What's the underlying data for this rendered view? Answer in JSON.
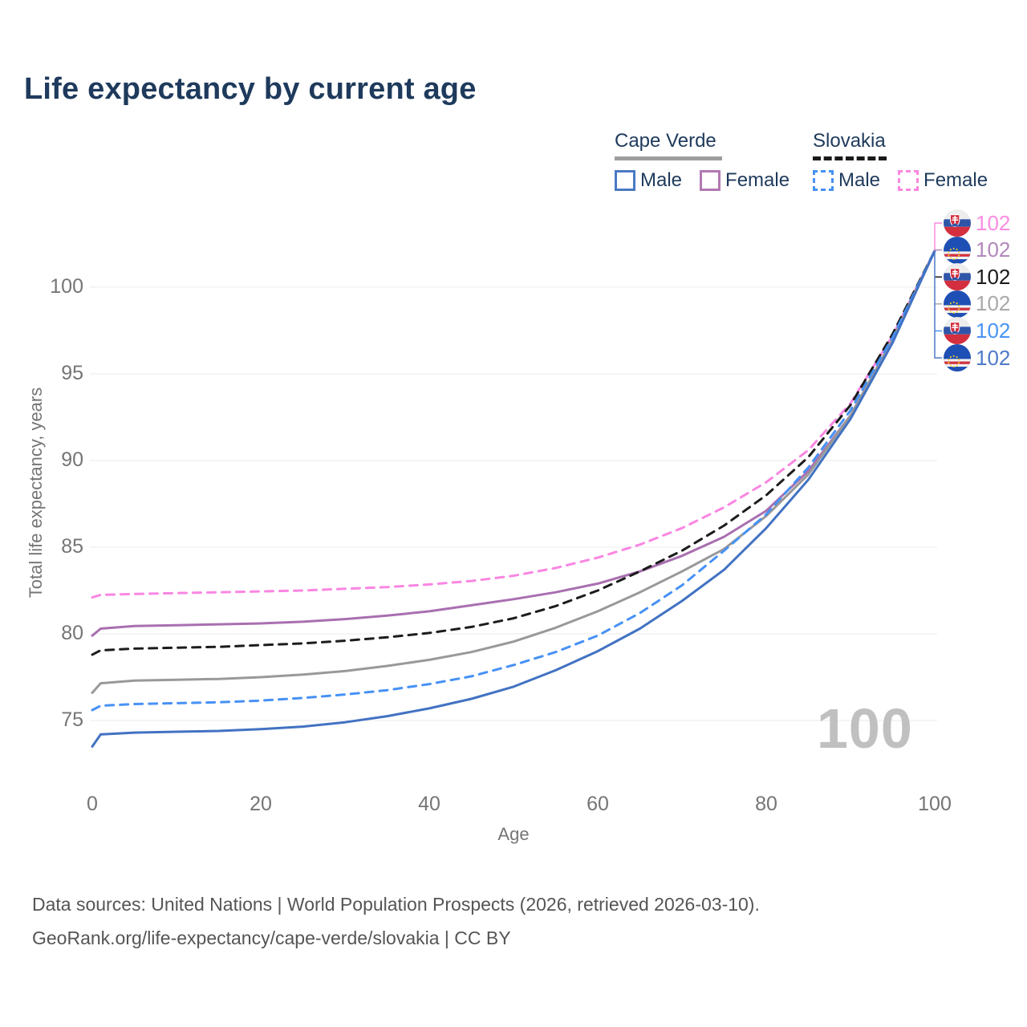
{
  "title": "Life expectancy by current age",
  "legend": {
    "groups": [
      {
        "country": "Cape Verde",
        "line_style": "solid",
        "underline_color": "#9e9e9e",
        "items": [
          {
            "label": "Male",
            "color": "#4a79c5",
            "style": "solid"
          },
          {
            "label": "Female",
            "color": "#b279b2",
            "style": "solid"
          }
        ]
      },
      {
        "country": "Slovakia",
        "line_style": "dashed",
        "underline_color": "#1a1a1a",
        "items": [
          {
            "label": "Male",
            "color": "#4791f5",
            "style": "dashed"
          },
          {
            "label": "Female",
            "color": "#fb87e0",
            "style": "dashed"
          }
        ]
      }
    ]
  },
  "watermark": "100",
  "footer": {
    "line1": "Data sources: United Nations | World Population Prospects (2026, retrieved 2026-03-10).",
    "line2": "GeoRank.org/life-expectancy/cape-verde/slovakia | CC BY"
  },
  "chart_data": {
    "type": "line",
    "title": "Life expectancy by current age",
    "xlabel": "Age",
    "ylabel": "Total life expectancy, years",
    "xticks": [
      0,
      20,
      40,
      60,
      80,
      100
    ],
    "yticks": [
      75,
      80,
      85,
      90,
      95,
      100
    ],
    "xlim": [
      0,
      100
    ],
    "ylim_view": [
      73,
      103
    ],
    "grid": "horizontal",
    "legend_position": "top-right",
    "series": [
      {
        "name": "Slovakia Female",
        "country": "Slovakia",
        "sex": "Female",
        "line_style": "dashed",
        "color": "#f986e2",
        "label_color": "#fb8ce1",
        "flag": "slovakia",
        "end_label": "102",
        "points": [
          [
            0,
            82.1
          ],
          [
            1,
            82.25
          ],
          [
            5,
            82.3
          ],
          [
            10,
            82.35
          ],
          [
            15,
            82.4
          ],
          [
            20,
            82.45
          ],
          [
            25,
            82.5
          ],
          [
            30,
            82.6
          ],
          [
            35,
            82.7
          ],
          [
            40,
            82.85
          ],
          [
            45,
            83.05
          ],
          [
            50,
            83.35
          ],
          [
            55,
            83.8
          ],
          [
            60,
            84.4
          ],
          [
            65,
            85.15
          ],
          [
            70,
            86.1
          ],
          [
            75,
            87.3
          ],
          [
            80,
            88.75
          ],
          [
            85,
            90.6
          ],
          [
            90,
            93.3
          ],
          [
            95,
            97.2
          ],
          [
            100,
            102.1
          ]
        ]
      },
      {
        "name": "Cape Verde Female",
        "country": "Cape Verde",
        "sex": "Female",
        "line_style": "solid",
        "color": "#a96fb0",
        "label_color": "#b287ba",
        "flag": "cape-verde",
        "end_label": "102",
        "points": [
          [
            0,
            79.9
          ],
          [
            1,
            80.3
          ],
          [
            5,
            80.45
          ],
          [
            10,
            80.5
          ],
          [
            15,
            80.55
          ],
          [
            20,
            80.6
          ],
          [
            25,
            80.7
          ],
          [
            30,
            80.85
          ],
          [
            35,
            81.05
          ],
          [
            40,
            81.3
          ],
          [
            45,
            81.65
          ],
          [
            50,
            82.0
          ],
          [
            55,
            82.4
          ],
          [
            60,
            82.9
          ],
          [
            65,
            83.6
          ],
          [
            70,
            84.5
          ],
          [
            75,
            85.6
          ],
          [
            80,
            87.1
          ],
          [
            85,
            89.4
          ],
          [
            90,
            92.6
          ],
          [
            95,
            96.9
          ],
          [
            100,
            102.1
          ]
        ]
      },
      {
        "name": "Slovakia",
        "country": "Slovakia",
        "sex": "Both",
        "line_style": "dashed",
        "color": "#1c1c1c",
        "label_color": "#1a1a1a",
        "flag": "slovakia",
        "end_label": "102",
        "points": [
          [
            0,
            78.8
          ],
          [
            1,
            79.05
          ],
          [
            5,
            79.15
          ],
          [
            10,
            79.2
          ],
          [
            15,
            79.25
          ],
          [
            20,
            79.35
          ],
          [
            25,
            79.45
          ],
          [
            30,
            79.6
          ],
          [
            35,
            79.8
          ],
          [
            40,
            80.05
          ],
          [
            45,
            80.4
          ],
          [
            50,
            80.9
          ],
          [
            55,
            81.6
          ],
          [
            60,
            82.5
          ],
          [
            65,
            83.6
          ],
          [
            70,
            84.8
          ],
          [
            75,
            86.25
          ],
          [
            80,
            88.0
          ],
          [
            85,
            90.2
          ],
          [
            90,
            93.2
          ],
          [
            95,
            97.3
          ],
          [
            100,
            102.1
          ]
        ]
      },
      {
        "name": "Cape Verde",
        "country": "Cape Verde",
        "sex": "Both",
        "line_style": "solid",
        "color": "#999999",
        "label_color": "#a9a9a9",
        "flag": "cape-verde",
        "end_label": "102",
        "points": [
          [
            0,
            76.6
          ],
          [
            1,
            77.15
          ],
          [
            5,
            77.3
          ],
          [
            10,
            77.35
          ],
          [
            15,
            77.4
          ],
          [
            20,
            77.5
          ],
          [
            25,
            77.65
          ],
          [
            30,
            77.85
          ],
          [
            35,
            78.15
          ],
          [
            40,
            78.5
          ],
          [
            45,
            78.95
          ],
          [
            50,
            79.55
          ],
          [
            55,
            80.35
          ],
          [
            60,
            81.3
          ],
          [
            65,
            82.4
          ],
          [
            70,
            83.6
          ],
          [
            75,
            84.9
          ],
          [
            80,
            86.8
          ],
          [
            85,
            89.2
          ],
          [
            90,
            92.6
          ],
          [
            95,
            97.0
          ],
          [
            100,
            102.1
          ]
        ]
      },
      {
        "name": "Slovakia Male",
        "country": "Slovakia",
        "sex": "Male",
        "line_style": "dashed",
        "color": "#4791f5",
        "label_color": "#4993f2",
        "flag": "slovakia",
        "end_label": "102",
        "points": [
          [
            0,
            75.6
          ],
          [
            1,
            75.85
          ],
          [
            5,
            75.95
          ],
          [
            10,
            76.0
          ],
          [
            15,
            76.05
          ],
          [
            20,
            76.15
          ],
          [
            25,
            76.3
          ],
          [
            30,
            76.5
          ],
          [
            35,
            76.75
          ],
          [
            40,
            77.1
          ],
          [
            45,
            77.55
          ],
          [
            50,
            78.2
          ],
          [
            55,
            78.95
          ],
          [
            60,
            79.9
          ],
          [
            65,
            81.2
          ],
          [
            70,
            82.8
          ],
          [
            75,
            84.8
          ],
          [
            80,
            86.9
          ],
          [
            85,
            89.6
          ],
          [
            90,
            92.9
          ],
          [
            95,
            97.1
          ],
          [
            100,
            102.1
          ]
        ]
      },
      {
        "name": "Cape Verde Male",
        "country": "Cape Verde",
        "sex": "Male",
        "line_style": "solid",
        "color": "#4272c2",
        "label_color": "#4d7ac9",
        "flag": "cape-verde",
        "end_label": "102",
        "points": [
          [
            0,
            73.5
          ],
          [
            1,
            74.2
          ],
          [
            5,
            74.3
          ],
          [
            10,
            74.35
          ],
          [
            15,
            74.4
          ],
          [
            20,
            74.5
          ],
          [
            25,
            74.65
          ],
          [
            30,
            74.9
          ],
          [
            35,
            75.25
          ],
          [
            40,
            75.7
          ],
          [
            45,
            76.25
          ],
          [
            50,
            76.95
          ],
          [
            55,
            77.9
          ],
          [
            60,
            79.0
          ],
          [
            65,
            80.3
          ],
          [
            70,
            81.9
          ],
          [
            75,
            83.7
          ],
          [
            80,
            86.1
          ],
          [
            85,
            88.9
          ],
          [
            90,
            92.4
          ],
          [
            95,
            96.8
          ],
          [
            100,
            102.1
          ]
        ]
      }
    ]
  }
}
